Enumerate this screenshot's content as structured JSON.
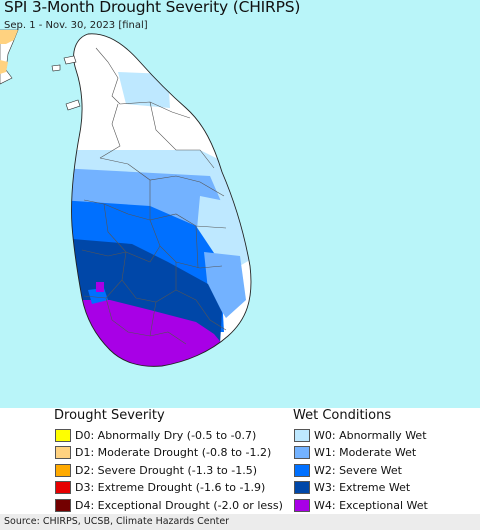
{
  "title": "SPI 3-Month Drought Severity (CHIRPS)",
  "subtitle": "Sep. 1 - Nov. 30, 2023 [final]",
  "colors": {
    "ocean": "#b9f5f9",
    "land_normal": "#ffffff",
    "border": "#555555",
    "india_dry": "#ffd280"
  },
  "legend": {
    "drought_heading": "Drought Severity",
    "drought_items": [
      {
        "code": "D0",
        "label": "D0: Abnormally Dry (-0.5 to -0.7)",
        "color": "#ffff00"
      },
      {
        "code": "D1",
        "label": "D1: Moderate Drought (-0.8 to -1.2)",
        "color": "#ffd280"
      },
      {
        "code": "D2",
        "label": "D2: Severe Drought (-1.3 to -1.5)",
        "color": "#ffaa00"
      },
      {
        "code": "D3",
        "label": "D3: Extreme Drought (-1.6 to -1.9)",
        "color": "#e60000"
      },
      {
        "code": "D4",
        "label": "D4: Exceptional Drought (-2.0 or less)",
        "color": "#730000"
      }
    ],
    "wet_heading": "Wet Conditions",
    "wet_items": [
      {
        "code": "W0",
        "label": "W0: Abnormally Wet",
        "color": "#bee8ff"
      },
      {
        "code": "W1",
        "label": "W1: Moderate Wet",
        "color": "#73b2ff"
      },
      {
        "code": "W2",
        "label": "W2: Severe Wet",
        "color": "#0070ff"
      },
      {
        "code": "W3",
        "label": "W3: Extreme Wet",
        "color": "#0047a8"
      },
      {
        "code": "W4",
        "label": "W4: Exceptional Wet",
        "color": "#a800e6"
      }
    ]
  },
  "source": "Source: CHIRPS, UCSB, Climate Hazards Center"
}
